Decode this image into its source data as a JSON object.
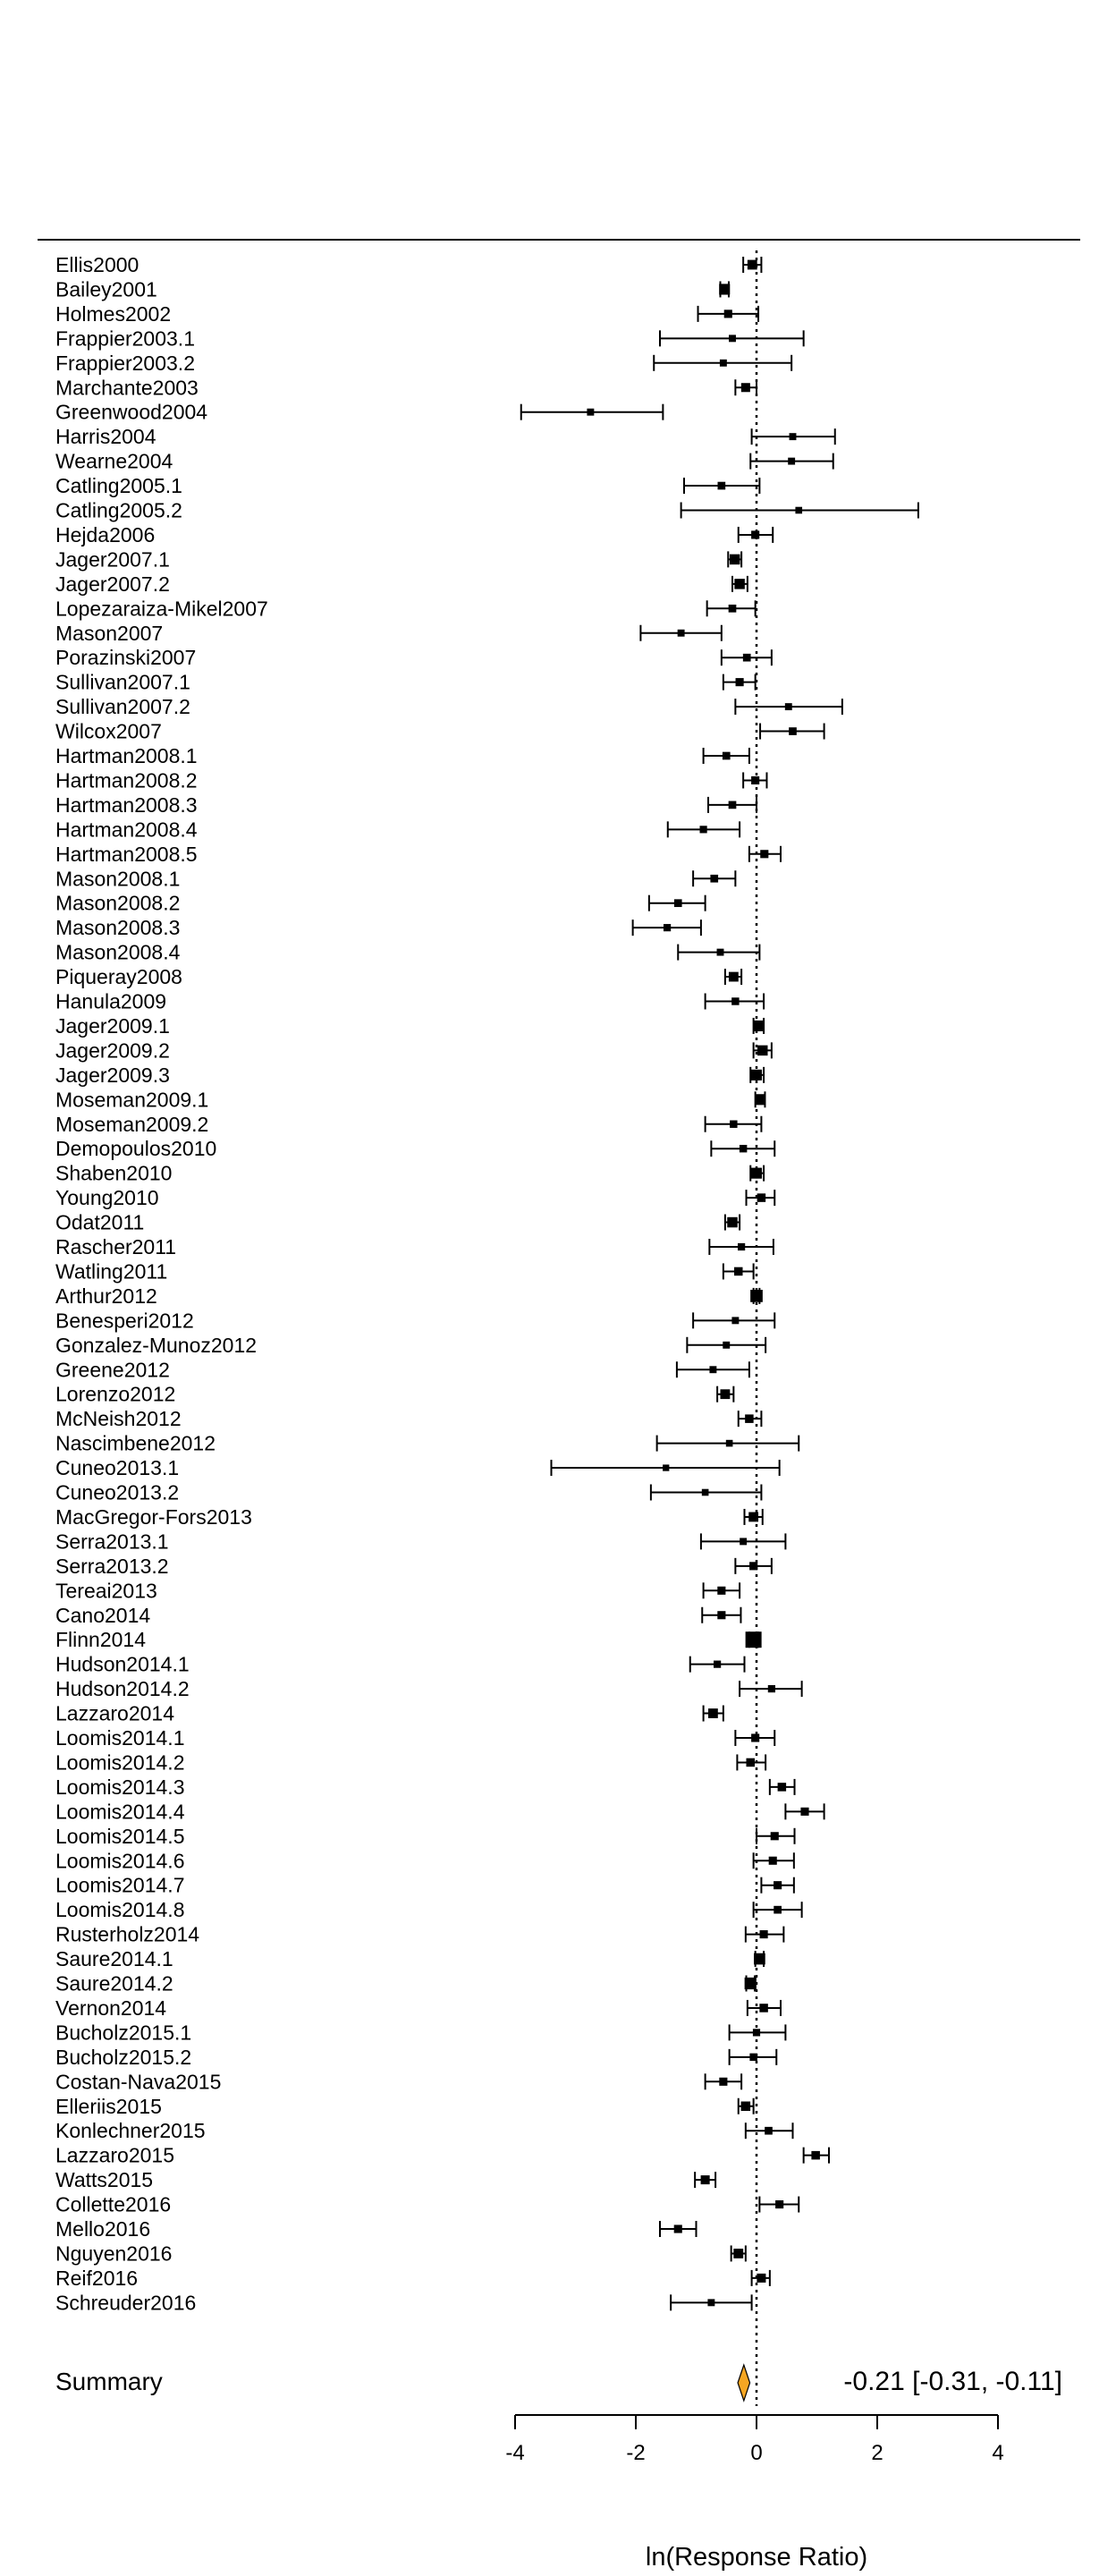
{
  "chart_data": {
    "type": "forest",
    "xlabel": "ln(Response Ratio)",
    "xlim": [
      -4,
      4
    ],
    "xticks": [
      -4,
      -2,
      0,
      2,
      4
    ],
    "reference_line": 0,
    "studies": [
      {
        "name": "Ellis2000",
        "est": -0.07,
        "lo": -0.22,
        "hi": 0.08,
        "w": 0.2
      },
      {
        "name": "Bailey2001",
        "est": -0.53,
        "lo": -0.6,
        "hi": -0.46,
        "w": 0.3
      },
      {
        "name": "Holmes2002",
        "est": -0.47,
        "lo": -0.97,
        "hi": 0.03,
        "w": 0.1
      },
      {
        "name": "Frappier2003.1",
        "est": -0.4,
        "lo": -1.6,
        "hi": 0.78,
        "w": 0.05
      },
      {
        "name": "Frappier2003.2",
        "est": -0.55,
        "lo": -1.7,
        "hi": 0.58,
        "w": 0.05
      },
      {
        "name": "Marchante2003",
        "est": -0.18,
        "lo": -0.35,
        "hi": 0.0,
        "w": 0.15
      },
      {
        "name": "Greenwood2004",
        "est": -2.75,
        "lo": -3.9,
        "hi": -1.55,
        "w": 0.05
      },
      {
        "name": "Harris2004",
        "est": 0.6,
        "lo": -0.08,
        "hi": 1.3,
        "w": 0.05
      },
      {
        "name": "Wearne2004",
        "est": 0.58,
        "lo": -0.1,
        "hi": 1.27,
        "w": 0.05
      },
      {
        "name": "Catling2005.1",
        "est": -0.58,
        "lo": -1.2,
        "hi": 0.05,
        "w": 0.08
      },
      {
        "name": "Catling2005.2",
        "est": 0.7,
        "lo": -1.25,
        "hi": 2.68,
        "w": 0.04
      },
      {
        "name": "Hejda2006",
        "est": -0.02,
        "lo": -0.3,
        "hi": 0.27,
        "w": 0.1
      },
      {
        "name": "Jager2007.1",
        "est": -0.36,
        "lo": -0.47,
        "hi": -0.25,
        "w": 0.25
      },
      {
        "name": "Jager2007.2",
        "est": -0.28,
        "lo": -0.4,
        "hi": -0.15,
        "w": 0.25
      },
      {
        "name": "Lopezaraiza-Mikel2007",
        "est": -0.4,
        "lo": -0.82,
        "hi": -0.02,
        "w": 0.08
      },
      {
        "name": "Mason2007",
        "est": -1.25,
        "lo": -1.92,
        "hi": -0.58,
        "w": 0.05
      },
      {
        "name": "Porazinski2007",
        "est": -0.16,
        "lo": -0.58,
        "hi": 0.25,
        "w": 0.08
      },
      {
        "name": "Sullivan2007.1",
        "est": -0.28,
        "lo": -0.55,
        "hi": -0.02,
        "w": 0.1
      },
      {
        "name": "Sullivan2007.2",
        "est": 0.53,
        "lo": -0.35,
        "hi": 1.42,
        "w": 0.05
      },
      {
        "name": "Wilcox2007",
        "est": 0.6,
        "lo": 0.06,
        "hi": 1.12,
        "w": 0.08
      },
      {
        "name": "Hartman2008.1",
        "est": -0.5,
        "lo": -0.88,
        "hi": -0.12,
        "w": 0.08
      },
      {
        "name": "Hartman2008.2",
        "est": -0.02,
        "lo": -0.22,
        "hi": 0.17,
        "w": 0.1
      },
      {
        "name": "Hartman2008.3",
        "est": -0.4,
        "lo": -0.8,
        "hi": 0.0,
        "w": 0.08
      },
      {
        "name": "Hartman2008.4",
        "est": -0.88,
        "lo": -1.47,
        "hi": -0.28,
        "w": 0.06
      },
      {
        "name": "Hartman2008.5",
        "est": 0.13,
        "lo": -0.12,
        "hi": 0.4,
        "w": 0.1
      },
      {
        "name": "Mason2008.1",
        "est": -0.7,
        "lo": -1.05,
        "hi": -0.35,
        "w": 0.08
      },
      {
        "name": "Mason2008.2",
        "est": -1.3,
        "lo": -1.78,
        "hi": -0.85,
        "w": 0.08
      },
      {
        "name": "Mason2008.3",
        "est": -1.48,
        "lo": -2.05,
        "hi": -0.92,
        "w": 0.06
      },
      {
        "name": "Mason2008.4",
        "est": -0.6,
        "lo": -1.3,
        "hi": 0.05,
        "w": 0.05
      },
      {
        "name": "Piqueray2008",
        "est": -0.38,
        "lo": -0.52,
        "hi": -0.25,
        "w": 0.2
      },
      {
        "name": "Hanula2009",
        "est": -0.35,
        "lo": -0.85,
        "hi": 0.12,
        "w": 0.07
      },
      {
        "name": "Jager2009.1",
        "est": 0.03,
        "lo": -0.05,
        "hi": 0.12,
        "w": 0.3
      },
      {
        "name": "Jager2009.2",
        "est": 0.1,
        "lo": -0.05,
        "hi": 0.25,
        "w": 0.25
      },
      {
        "name": "Jager2009.3",
        "est": 0.0,
        "lo": -0.1,
        "hi": 0.12,
        "w": 0.3
      },
      {
        "name": "Moseman2009.1",
        "est": 0.06,
        "lo": -0.02,
        "hi": 0.14,
        "w": 0.3
      },
      {
        "name": "Moseman2009.2",
        "est": -0.38,
        "lo": -0.85,
        "hi": 0.08,
        "w": 0.07
      },
      {
        "name": "Demopoulos2010",
        "est": -0.22,
        "lo": -0.75,
        "hi": 0.3,
        "w": 0.07
      },
      {
        "name": "Shaben2010",
        "est": 0.0,
        "lo": -0.1,
        "hi": 0.12,
        "w": 0.3
      },
      {
        "name": "Young2010",
        "est": 0.08,
        "lo": -0.17,
        "hi": 0.3,
        "w": 0.12
      },
      {
        "name": "Odat2011",
        "est": -0.4,
        "lo": -0.52,
        "hi": -0.28,
        "w": 0.25
      },
      {
        "name": "Rascher2011",
        "est": -0.25,
        "lo": -0.78,
        "hi": 0.28,
        "w": 0.06
      },
      {
        "name": "Watling2011",
        "est": -0.3,
        "lo": -0.55,
        "hi": -0.05,
        "w": 0.12
      },
      {
        "name": "Arthur2012",
        "est": 0.0,
        "lo": -0.05,
        "hi": 0.05,
        "w": 0.45
      },
      {
        "name": "Benesperi2012",
        "est": -0.35,
        "lo": -1.05,
        "hi": 0.3,
        "w": 0.05
      },
      {
        "name": "Gonzalez-Munoz2012",
        "est": -0.5,
        "lo": -1.15,
        "hi": 0.15,
        "w": 0.05
      },
      {
        "name": "Greene2012",
        "est": -0.72,
        "lo": -1.32,
        "hi": -0.12,
        "w": 0.05
      },
      {
        "name": "Lorenzo2012",
        "est": -0.52,
        "lo": -0.65,
        "hi": -0.38,
        "w": 0.2
      },
      {
        "name": "McNeish2012",
        "est": -0.12,
        "lo": -0.3,
        "hi": 0.08,
        "w": 0.12
      },
      {
        "name": "Nascimbene2012",
        "est": -0.45,
        "lo": -1.65,
        "hi": 0.7,
        "w": 0.04
      },
      {
        "name": "Cuneo2013.1",
        "est": -1.5,
        "lo": -3.4,
        "hi": 0.38,
        "w": 0.03
      },
      {
        "name": "Cuneo2013.2",
        "est": -0.85,
        "lo": -1.75,
        "hi": 0.08,
        "w": 0.04
      },
      {
        "name": "MacGregor-Fors2013",
        "est": -0.05,
        "lo": -0.2,
        "hi": 0.1,
        "w": 0.2
      },
      {
        "name": "Serra2013.1",
        "est": -0.22,
        "lo": -0.92,
        "hi": 0.48,
        "w": 0.05
      },
      {
        "name": "Serra2013.2",
        "est": -0.05,
        "lo": -0.35,
        "hi": 0.25,
        "w": 0.1
      },
      {
        "name": "Tereai2013",
        "est": -0.58,
        "lo": -0.88,
        "hi": -0.28,
        "w": 0.1
      },
      {
        "name": "Cano2014",
        "est": -0.58,
        "lo": -0.9,
        "hi": -0.26,
        "w": 0.1
      },
      {
        "name": "Flinn2014",
        "est": -0.05,
        "lo": -0.12,
        "hi": 0.03,
        "w": 1.0
      },
      {
        "name": "Hudson2014.1",
        "est": -0.65,
        "lo": -1.1,
        "hi": -0.2,
        "w": 0.06
      },
      {
        "name": "Hudson2014.2",
        "est": 0.25,
        "lo": -0.28,
        "hi": 0.75,
        "w": 0.06
      },
      {
        "name": "Lazzaro2014",
        "est": -0.72,
        "lo": -0.88,
        "hi": -0.55,
        "w": 0.2
      },
      {
        "name": "Loomis2014.1",
        "est": -0.02,
        "lo": -0.35,
        "hi": 0.3,
        "w": 0.1
      },
      {
        "name": "Loomis2014.2",
        "est": -0.1,
        "lo": -0.32,
        "hi": 0.15,
        "w": 0.12
      },
      {
        "name": "Loomis2014.3",
        "est": 0.42,
        "lo": 0.22,
        "hi": 0.63,
        "w": 0.12
      },
      {
        "name": "Loomis2014.4",
        "est": 0.8,
        "lo": 0.48,
        "hi": 1.12,
        "w": 0.1
      },
      {
        "name": "Loomis2014.5",
        "est": 0.3,
        "lo": 0.0,
        "hi": 0.63,
        "w": 0.1
      },
      {
        "name": "Loomis2014.6",
        "est": 0.27,
        "lo": -0.05,
        "hi": 0.62,
        "w": 0.1
      },
      {
        "name": "Loomis2014.7",
        "est": 0.35,
        "lo": 0.08,
        "hi": 0.62,
        "w": 0.1
      },
      {
        "name": "Loomis2014.8",
        "est": 0.35,
        "lo": -0.05,
        "hi": 0.75,
        "w": 0.08
      },
      {
        "name": "Rusterholz2014",
        "est": 0.12,
        "lo": -0.18,
        "hi": 0.45,
        "w": 0.1
      },
      {
        "name": "Saure2014.1",
        "est": 0.05,
        "lo": -0.02,
        "hi": 0.12,
        "w": 0.35
      },
      {
        "name": "Saure2014.2",
        "est": -0.1,
        "lo": -0.17,
        "hi": -0.03,
        "w": 0.4
      },
      {
        "name": "Vernon2014",
        "est": 0.12,
        "lo": -0.15,
        "hi": 0.4,
        "w": 0.12
      },
      {
        "name": "Bucholz2015.1",
        "est": 0.0,
        "lo": -0.45,
        "hi": 0.48,
        "w": 0.06
      },
      {
        "name": "Bucholz2015.2",
        "est": -0.05,
        "lo": -0.45,
        "hi": 0.33,
        "w": 0.07
      },
      {
        "name": "Costan-Nava2015",
        "est": -0.55,
        "lo": -0.85,
        "hi": -0.25,
        "w": 0.1
      },
      {
        "name": "Elleriis2015",
        "est": -0.18,
        "lo": -0.3,
        "hi": -0.05,
        "w": 0.18
      },
      {
        "name": "Konlechner2015",
        "est": 0.2,
        "lo": -0.18,
        "hi": 0.6,
        "w": 0.08
      },
      {
        "name": "Lazzaro2015",
        "est": 0.98,
        "lo": 0.78,
        "hi": 1.2,
        "w": 0.12
      },
      {
        "name": "Watts2015",
        "est": -0.85,
        "lo": -1.02,
        "hi": -0.68,
        "w": 0.15
      },
      {
        "name": "Collette2016",
        "est": 0.38,
        "lo": 0.05,
        "hi": 0.7,
        "w": 0.1
      },
      {
        "name": "Mello2016",
        "est": -1.3,
        "lo": -1.6,
        "hi": -1.0,
        "w": 0.1
      },
      {
        "name": "Nguyen2016",
        "est": -0.3,
        "lo": -0.42,
        "hi": -0.18,
        "w": 0.2
      },
      {
        "name": "Reif2016",
        "est": 0.08,
        "lo": -0.08,
        "hi": 0.22,
        "w": 0.15
      },
      {
        "name": "Schreuder2016",
        "est": -0.75,
        "lo": -1.42,
        "hi": -0.08,
        "w": 0.05
      }
    ],
    "summary": {
      "label": "Summary",
      "est": -0.21,
      "lo": -0.31,
      "hi": -0.11,
      "text": "-0.21 [-0.31, -0.11]",
      "color": "#F5A623"
    }
  }
}
